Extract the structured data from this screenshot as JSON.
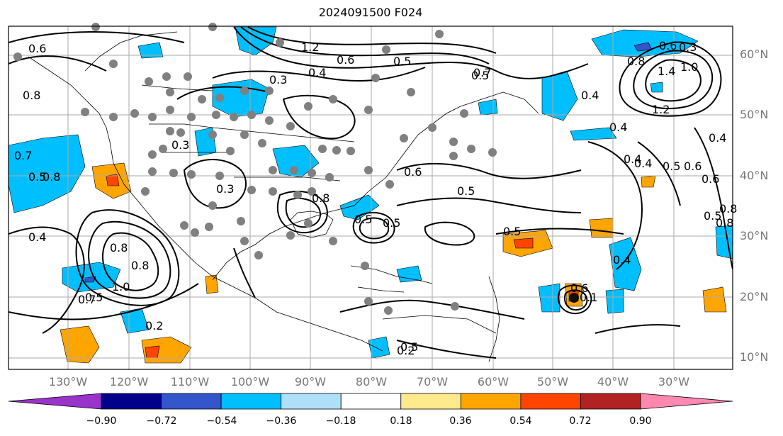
{
  "title": "2024091500 F024",
  "lat_labels": [
    "60°N",
    "50°N",
    "40°N",
    "30°N",
    "20°N",
    "10°N"
  ],
  "lon_labels": [
    "130°W",
    "120°W",
    "110°W",
    "100°W",
    "90°W",
    "80°W",
    "70°W",
    "60°W",
    "50°W",
    "40°W",
    "30°W"
  ],
  "colorbar": {
    "tick_labels": [
      "−0.90",
      "−0.72",
      "−0.54",
      "−0.36",
      "−0.18",
      "0.18",
      "0.36",
      "0.54",
      "0.72",
      "0.90"
    ],
    "colors": [
      "#9933cc",
      "#00008b",
      "#3355cc",
      "#00bfff",
      "#aee0fa",
      "#ffffff",
      "#ffe98a",
      "#ffa500",
      "#ff4500",
      "#b22222",
      "#ff88b0"
    ],
    "extend": "both"
  },
  "contour_labels": [
    "0.6",
    "0.7",
    "0.8",
    "0.4",
    "0.5",
    "1.2",
    "0.6",
    "0.5",
    "0.4",
    "0.3",
    "0.4",
    "0.6",
    "0.5",
    "0.7",
    "1.4",
    "1.0",
    "0.8",
    "0.6",
    "0.4",
    "1.2",
    "0.5",
    "0.3",
    "0.3",
    "0.6",
    "0.5",
    "0.4",
    "0.5",
    "0.8",
    "0.4",
    "0.6",
    "0.8",
    "0.8",
    "1.0",
    "0.7",
    "0.5",
    "0.4",
    "0.2",
    "0.5",
    "0.8",
    "0.5",
    "0.5",
    "0.4",
    "0.8",
    "0.5",
    "0.6",
    "0.2",
    "0.1",
    "0.8",
    "0.3"
  ]
}
